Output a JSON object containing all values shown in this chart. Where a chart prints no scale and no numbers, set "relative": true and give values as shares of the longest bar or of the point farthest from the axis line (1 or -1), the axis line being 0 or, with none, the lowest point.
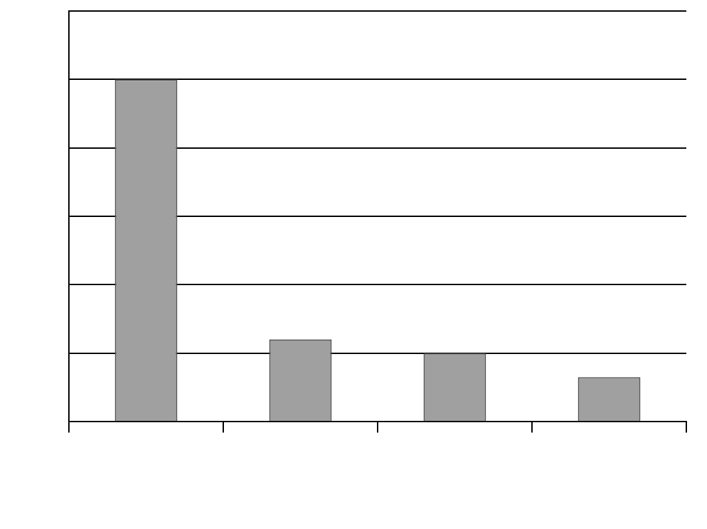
{
  "chart_data": {
    "type": "bar",
    "relative": true,
    "categories": [
      null,
      null,
      null,
      null
    ],
    "values": [
      1,
      0.24,
      0.2,
      0.13
    ],
    "color": "#a0a0a0",
    "grid": "y",
    "legend": false
  }
}
